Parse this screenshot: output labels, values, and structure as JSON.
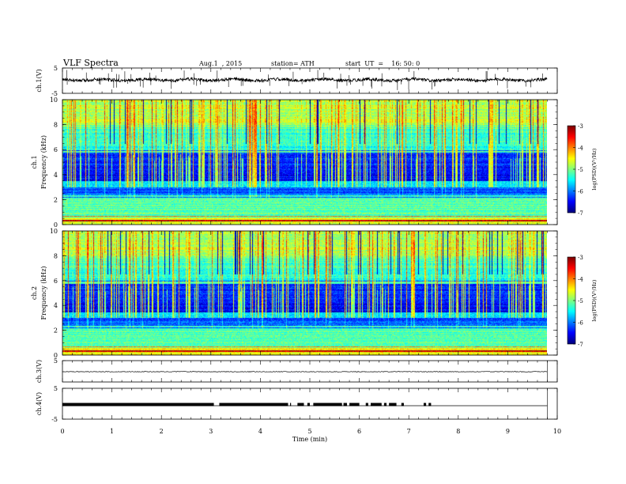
{
  "header": {
    "title": "VLF  Spectra",
    "date": "Aug.1  , 2015",
    "station": "station= ATH",
    "start": "start  UT  =    16: 50: 0"
  },
  "chart_data": [
    {
      "type": "line",
      "panel": "ch1",
      "ylabel": "ch.1(V)",
      "ylim": [
        -5,
        5
      ],
      "yticks": [
        "5",
        "-5"
      ],
      "xlim": [
        0,
        9.8
      ],
      "note": "broadband waveform near +0.5 V with frequent spikes"
    },
    {
      "type": "heatmap",
      "panel": "ch1-spectrogram",
      "ylabel": "ch.1 Frequency  (kHz)",
      "ylim": [
        0,
        10
      ],
      "yticks": [
        "0",
        "2",
        "4",
        "6",
        "8",
        "10"
      ],
      "xlim": [
        0,
        9.8
      ],
      "colorbar": {
        "label": "log(PSD)(V²/Hz)",
        "ticks": [
          "-3",
          "-4",
          "-5",
          "-6",
          "-7"
        ],
        "range": [
          -7,
          -3
        ]
      }
    },
    {
      "type": "heatmap",
      "panel": "ch2-spectrogram",
      "ylabel": "ch.2 Frequency  (kHz)",
      "ylim": [
        0,
        10
      ],
      "yticks": [
        "0",
        "2",
        "4",
        "6",
        "8",
        "10"
      ],
      "xlim": [
        0,
        9.8
      ],
      "colorbar": {
        "label": "log(PSD)(V²/Hz)",
        "ticks": [
          "-3",
          "-4",
          "-5",
          "-6",
          "-7"
        ],
        "range": [
          -7,
          -3
        ]
      }
    },
    {
      "type": "line",
      "panel": "ch3",
      "ylabel": "ch.3(V)",
      "ylim": [
        -5,
        5
      ],
      "yticks": [
        "5"
      ],
      "xlim": [
        0,
        9.8
      ],
      "note": "nearly flat near 0 V"
    },
    {
      "type": "line",
      "panel": "ch4",
      "ylabel": "ch.4(V)",
      "ylim": [
        -5,
        5
      ],
      "yticks": [
        "5",
        "-5"
      ],
      "xlim": [
        0,
        9.8
      ],
      "note": "digital signal near 0 V with thick segments",
      "segments_min": [
        [
          0,
          3.06
        ],
        [
          3.17,
          4.56
        ],
        [
          4.6,
          4.62
        ],
        [
          4.75,
          4.88
        ],
        [
          4.95,
          5.0
        ],
        [
          5.07,
          5.65
        ],
        [
          5.68,
          5.75
        ],
        [
          5.8,
          6.0
        ],
        [
          6.13,
          6.18
        ],
        [
          6.23,
          6.45
        ],
        [
          6.5,
          6.55
        ],
        [
          6.6,
          6.75
        ],
        [
          6.85,
          6.9
        ],
        [
          7.3,
          7.35
        ],
        [
          7.4,
          7.45
        ]
      ]
    }
  ],
  "xaxis": {
    "label": "Time  (min)",
    "ticks": [
      "0",
      "1",
      "2",
      "3",
      "4",
      "5",
      "6",
      "7",
      "8",
      "9",
      "10"
    ],
    "xlim": [
      0,
      10
    ]
  }
}
